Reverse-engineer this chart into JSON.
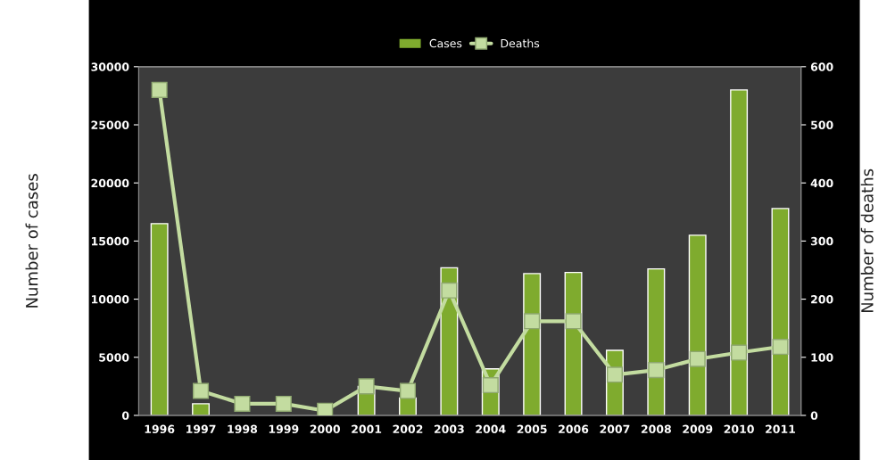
{
  "chart_data": {
    "type": "bar",
    "categories": [
      "1996",
      "1997",
      "1998",
      "1999",
      "2000",
      "2001",
      "2002",
      "2003",
      "2004",
      "2005",
      "2006",
      "2007",
      "2008",
      "2009",
      "2010",
      "2011"
    ],
    "series": [
      {
        "name": "Cases",
        "color": "#7fab2e",
        "values": [
          16500,
          1000,
          null,
          null,
          null,
          2500,
          1500,
          12700,
          4000,
          12200,
          12300,
          5600,
          12600,
          15500,
          28000,
          17800
        ]
      },
      {
        "name": "Deaths",
        "type": "line",
        "axis": "y2",
        "color": "#c3dca0",
        "marker": "square",
        "values": [
          560,
          42,
          20,
          20,
          8,
          50,
          42,
          215,
          52,
          162,
          162,
          70,
          78,
          97,
          108,
          118
        ]
      }
    ],
    "ylabel": "Number of cases",
    "y2label": "Number of deaths",
    "ylim": [
      0,
      30000
    ],
    "yticks": [
      0,
      5000,
      10000,
      15000,
      20000,
      25000,
      30000
    ],
    "y2lim": [
      0,
      600
    ],
    "y2ticks": [
      0,
      100,
      200,
      300,
      400,
      500,
      600
    ],
    "legend": "top",
    "grid": false
  }
}
